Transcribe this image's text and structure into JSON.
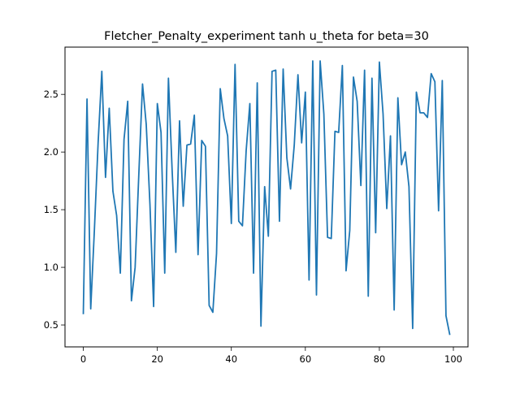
{
  "chart_data": {
    "type": "line",
    "title": "Fletcher_Penalty_experiment tanh u_theta for beta=30",
    "xlabel": "",
    "ylabel": "",
    "xlim": [
      -4.95,
      103.95
    ],
    "ylim": [
      0.31,
      2.91
    ],
    "xticks": [
      0,
      20,
      40,
      60,
      80,
      100
    ],
    "xtick_labels": [
      "0",
      "20",
      "40",
      "60",
      "80",
      "100"
    ],
    "yticks": [
      0.5,
      1.0,
      1.5,
      2.0,
      2.5
    ],
    "ytick_labels": [
      "0.5",
      "1.0",
      "1.5",
      "2.0",
      "2.5"
    ],
    "grid": false,
    "legend": "none",
    "line_color": "#1f77b4",
    "series": [
      {
        "x": [
          0,
          1,
          2,
          3,
          4,
          5,
          6,
          7,
          8,
          9,
          10,
          11,
          12,
          13,
          14,
          15,
          16,
          17,
          18,
          19,
          20,
          21,
          22,
          23,
          24,
          25,
          26,
          27,
          28,
          29,
          30,
          31,
          32,
          33,
          34,
          35,
          36,
          37,
          38,
          39,
          40,
          41,
          42,
          43,
          44,
          45,
          46,
          47,
          48,
          49,
          50,
          51,
          52,
          53,
          54,
          55,
          56,
          57,
          58,
          59,
          60,
          61,
          62,
          63,
          64,
          65,
          66,
          67,
          68,
          69,
          70,
          71,
          72,
          73,
          74,
          75,
          76,
          77,
          78,
          79,
          80,
          81,
          82,
          83,
          84,
          85,
          86,
          87,
          88,
          89,
          90,
          91,
          92,
          93,
          94,
          95,
          96,
          97,
          98,
          99
        ],
        "values": [
          0.6,
          2.46,
          0.64,
          1.33,
          2.08,
          2.7,
          1.78,
          2.38,
          1.66,
          1.45,
          0.95,
          2.11,
          2.44,
          0.71,
          1.0,
          1.81,
          2.59,
          2.24,
          1.55,
          0.66,
          2.42,
          2.17,
          0.95,
          2.64,
          1.84,
          1.13,
          2.27,
          1.53,
          2.06,
          2.07,
          2.32,
          1.11,
          2.1,
          2.05,
          0.67,
          0.61,
          1.12,
          2.55,
          2.29,
          2.14,
          1.38,
          2.76,
          1.4,
          1.36,
          2.01,
          2.42,
          0.95,
          2.6,
          0.49,
          1.7,
          1.27,
          2.7,
          2.71,
          1.4,
          2.72,
          1.95,
          1.68,
          2.06,
          2.67,
          2.08,
          2.52,
          0.89,
          2.79,
          0.76,
          2.79,
          2.33,
          1.26,
          1.25,
          2.18,
          2.17,
          2.75,
          0.97,
          1.32,
          2.65,
          2.44,
          1.71,
          2.71,
          0.75,
          2.64,
          1.3,
          2.78,
          2.33,
          1.51,
          2.14,
          0.63,
          2.47,
          1.89,
          2.0,
          1.7,
          0.47,
          2.52,
          2.34,
          2.34,
          2.3,
          2.68,
          2.61,
          1.49,
          2.62,
          0.58,
          0.42
        ]
      }
    ]
  }
}
